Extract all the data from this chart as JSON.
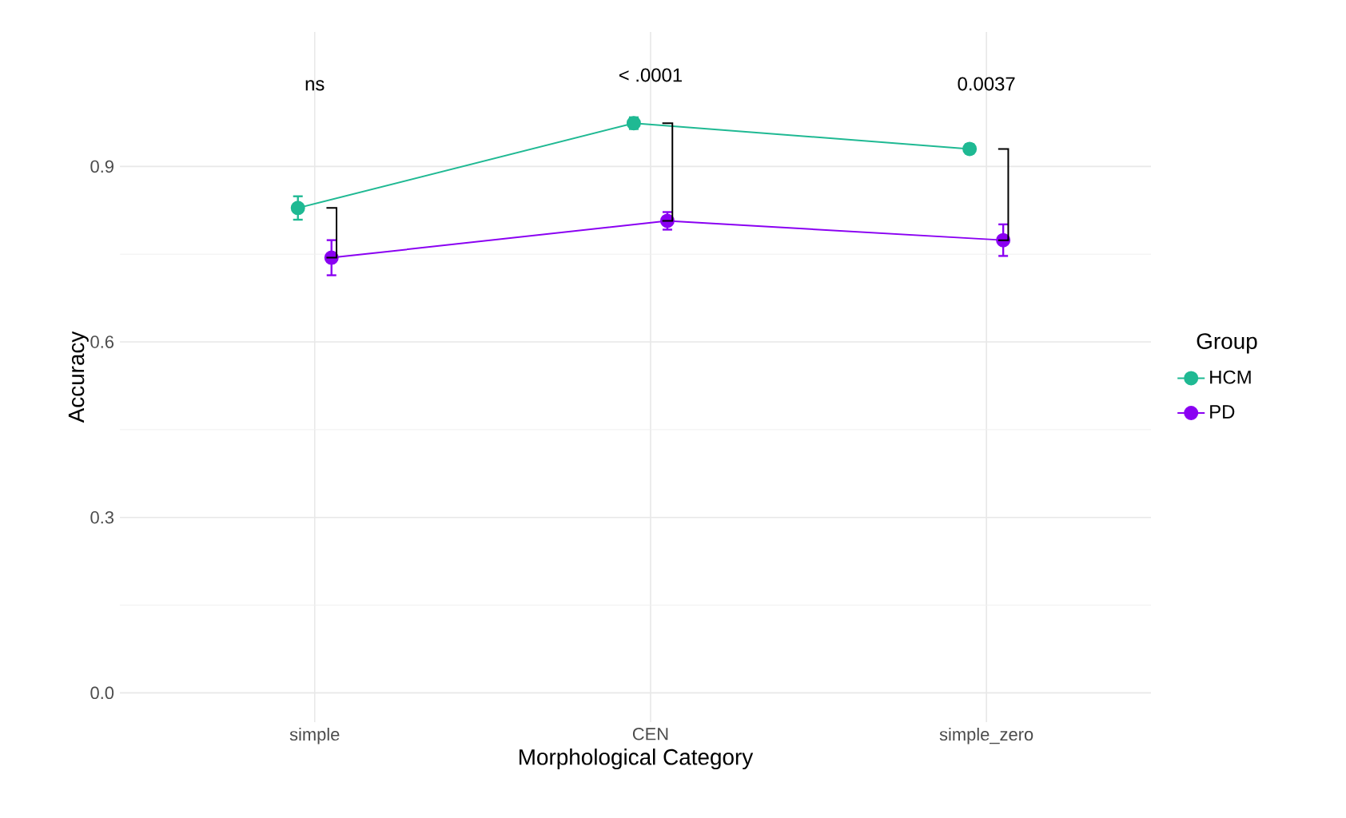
{
  "chart_data": {
    "type": "line",
    "xlabel": "Morphological Category",
    "ylabel": "Accuracy",
    "legend_title": "Group",
    "categories": [
      "simple",
      "CEN",
      "simple_zero"
    ],
    "series": [
      {
        "name": "HCM",
        "color": "#1fb993",
        "values": [
          0.829,
          0.974,
          0.93
        ],
        "errors": [
          0.02,
          0.01,
          0.008
        ]
      },
      {
        "name": "PD",
        "color": "#8a00f2",
        "values": [
          0.744,
          0.807,
          0.774
        ],
        "errors": [
          0.03,
          0.015,
          0.027
        ]
      }
    ],
    "ylim": [
      -0.05,
      1.13
    ],
    "yticks": [
      {
        "value": 0,
        "label": "0.0"
      },
      0.3,
      0.6,
      0.9
    ],
    "grid": true,
    "legend": "right",
    "marker": "circle",
    "line_style": "solid",
    "annotations": [
      "ns",
      "< .0001",
      "0.0037"
    ]
  }
}
